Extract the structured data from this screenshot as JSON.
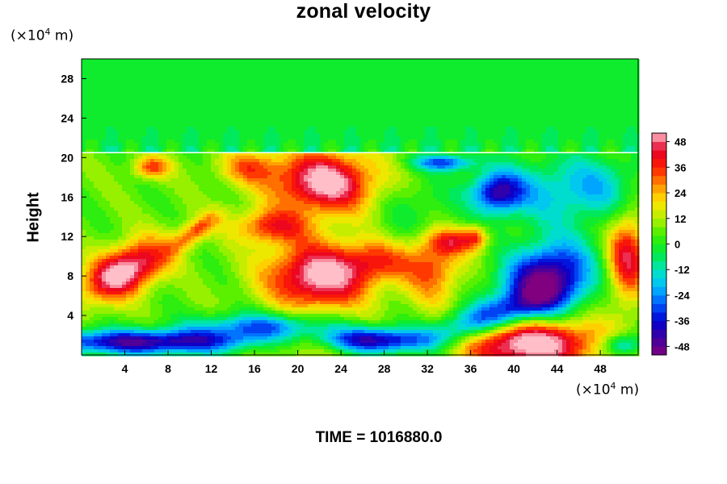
{
  "chart_data": {
    "type": "heatmap",
    "title": "zonal velocity",
    "ylabel": "Height",
    "xlabel": "",
    "y_unit_prefix": "(×10",
    "y_unit_exp": "4",
    "y_unit_suffix": " m)",
    "x_unit_prefix": "(×10",
    "x_unit_exp": "4",
    "x_unit_suffix": " m)",
    "xlim": [
      0,
      51.5
    ],
    "ylim": [
      0,
      30
    ],
    "x_ticks": [
      4,
      8,
      12,
      16,
      20,
      24,
      28,
      32,
      36,
      40,
      44,
      48
    ],
    "y_ticks": [
      4,
      8,
      12,
      16,
      20,
      24,
      28
    ],
    "colorbar": {
      "range": [
        -52,
        52
      ],
      "ticks": [
        48,
        36,
        24,
        12,
        0,
        -12,
        -24,
        -36,
        -48
      ]
    },
    "features": [
      {
        "x": 4.0,
        "y": 8.5,
        "value": 52,
        "sx": 3.0,
        "sy": 1.6,
        "rot": -0.55
      },
      {
        "x": 6.5,
        "y": 19.0,
        "value": 28,
        "sx": 1.2,
        "sy": 0.8,
        "rot": 0
      },
      {
        "x": 10.5,
        "y": 12.5,
        "value": 26,
        "sx": 2.0,
        "sy": 0.7,
        "rot": -0.7
      },
      {
        "x": 15.5,
        "y": 19.0,
        "value": 22,
        "sx": 2.0,
        "sy": 1.2,
        "rot": 0
      },
      {
        "x": 17.5,
        "y": 13.0,
        "value": 30,
        "sx": 2.4,
        "sy": 1.2,
        "rot": 0
      },
      {
        "x": 22.5,
        "y": 17.5,
        "value": 50,
        "sx": 3.4,
        "sy": 2.2,
        "rot": 0
      },
      {
        "x": 22.0,
        "y": 8.0,
        "value": 50,
        "sx": 3.4,
        "sy": 2.4,
        "rot": 0
      },
      {
        "x": 27.5,
        "y": 9.5,
        "value": 22,
        "sx": 2.2,
        "sy": 1.4,
        "rot": 0
      },
      {
        "x": 32.5,
        "y": 9.0,
        "value": 28,
        "sx": 1.8,
        "sy": 2.6,
        "rot": 0
      },
      {
        "x": 34.5,
        "y": 11.5,
        "value": 26,
        "sx": 1.6,
        "sy": 0.9,
        "rot": 0
      },
      {
        "x": 36.5,
        "y": 12.0,
        "value": 22,
        "sx": 0.8,
        "sy": 0.8,
        "rot": 0
      },
      {
        "x": 20.0,
        "y": 1.5,
        "value": 22,
        "sx": 4.0,
        "sy": 1.3,
        "rot": 0
      },
      {
        "x": 41.5,
        "y": 1.2,
        "value": 55,
        "sx": 4.5,
        "sy": 1.8,
        "rot": 0
      },
      {
        "x": 50.5,
        "y": 10.0,
        "value": 38,
        "sx": 1.3,
        "sy": 3.2,
        "rot": 0
      },
      {
        "x": 43.0,
        "y": 7.5,
        "value": -60,
        "sx": 3.0,
        "sy": 2.4,
        "rot": -0.6
      },
      {
        "x": 37.0,
        "y": 3.5,
        "value": -40,
        "sx": 3.8,
        "sy": 1.2,
        "rot": -0.35
      },
      {
        "x": 6.0,
        "y": 1.3,
        "value": -50,
        "sx": 8.0,
        "sy": 0.9,
        "rot": 0
      },
      {
        "x": 17.5,
        "y": 2.8,
        "value": -40,
        "sx": 4.5,
        "sy": 1.0,
        "rot": 0
      },
      {
        "x": 27.0,
        "y": 1.5,
        "value": -50,
        "sx": 3.5,
        "sy": 0.9,
        "rot": 0
      },
      {
        "x": 50.0,
        "y": 1.0,
        "value": -30,
        "sx": 1.3,
        "sy": 0.8,
        "rot": 0
      },
      {
        "x": 38.5,
        "y": 16.5,
        "value": -40,
        "sx": 1.6,
        "sy": 1.4,
        "rot": 0
      },
      {
        "x": 33.5,
        "y": 19.5,
        "value": -35,
        "sx": 2.0,
        "sy": 0.6,
        "rot": 0
      },
      {
        "x": 42.0,
        "y": 16.5,
        "value": -18,
        "sx": 4.0,
        "sy": 2.5,
        "rot": 0
      },
      {
        "x": 48.0,
        "y": 17.0,
        "value": -18,
        "sx": 3.0,
        "sy": 2.5,
        "rot": 0
      },
      {
        "x": 31.0,
        "y": 14.5,
        "value": -10,
        "sx": 2.5,
        "sy": 2.5,
        "rot": 0
      }
    ],
    "upper_layer": {
      "y_from": 20.5,
      "value": -3
    }
  },
  "footer": {
    "time_text": "TIME = 1016880.0"
  }
}
